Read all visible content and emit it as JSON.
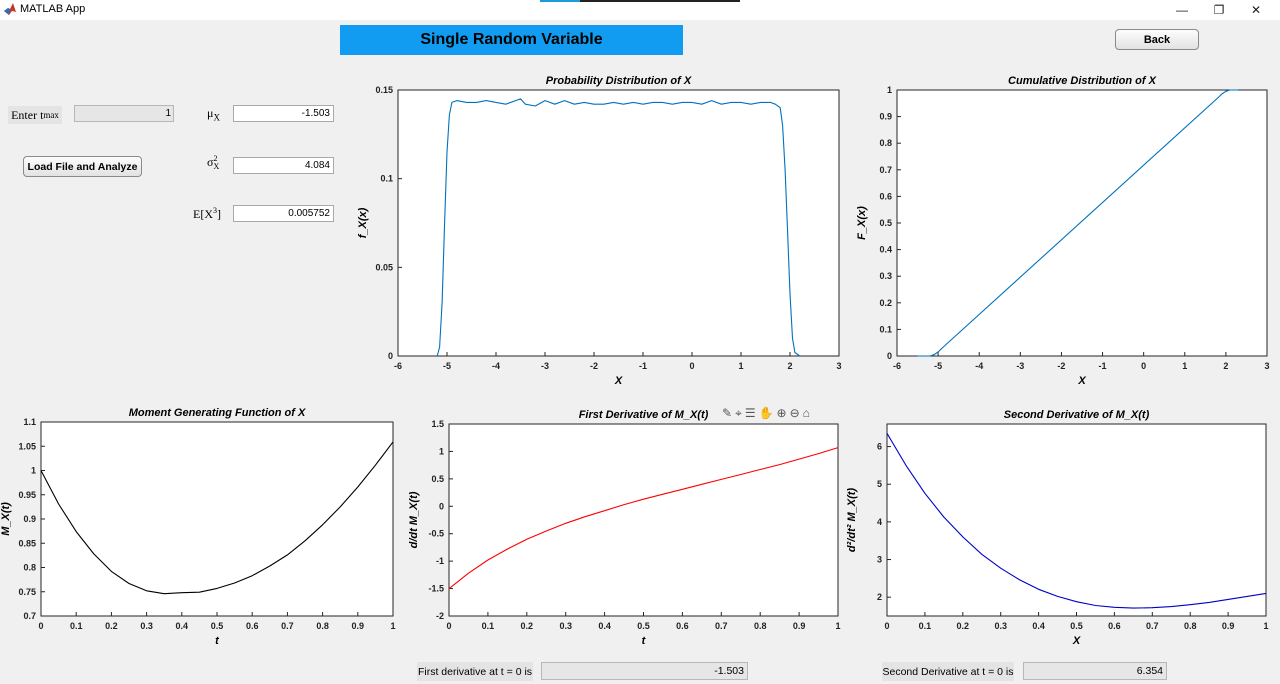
{
  "window": {
    "title": "MATLAB App",
    "minimize_icon": "—",
    "maximize_icon": "❐",
    "close_icon": "✕"
  },
  "header": {
    "title": "Single Random Variable",
    "back_label": "Back"
  },
  "inputs": {
    "tmax_label": "Enter",
    "tmax_sub": "max",
    "tmax_t": "t",
    "tmax_value": "1",
    "load_label": "Load File and Analyze"
  },
  "stats": {
    "mu_symbol": "μ",
    "mu_sub": "X",
    "mu_value": "-1.503",
    "var_symbol": "σ",
    "var_sup": "2",
    "var_sub": "X",
    "var_value": "4.084",
    "ex3_symbol": "E[X",
    "ex3_sup": "3",
    "ex3_close": "]",
    "ex3_value": "0.005752"
  },
  "bottom": {
    "first_label": "First derivative at t = 0 is",
    "first_value": "-1.503",
    "second_label": "Second Derivative at t = 0 is",
    "second_value": "6.354"
  },
  "toolbar_icons": [
    "brush-icon",
    "data-tip-icon",
    "legend-icon",
    "pan-icon",
    "zoom-in-icon",
    "zoom-out-icon",
    "home-icon"
  ],
  "chart_data": [
    {
      "id": "pdf",
      "type": "line",
      "title": "Probability Distribution of X",
      "xlabel": "X",
      "ylabel": "f_X(x)",
      "xlim": [
        -6,
        3
      ],
      "ylim": [
        0,
        0.15
      ],
      "xticks": [
        -6,
        -5,
        -4,
        -3,
        -2,
        -1,
        0,
        1,
        2,
        3
      ],
      "yticks": [
        0,
        0.05,
        0.1,
        0.15
      ],
      "ytick_labels": [
        "0",
        "0.05",
        "0.1",
        "0.15"
      ],
      "color": "#0072bd",
      "series": [
        {
          "x": [
            -5.2,
            -5.15,
            -5.1,
            -5.05,
            -5.0,
            -4.95,
            -4.9,
            -4.8,
            -4.6,
            -4.4,
            -4.2,
            -4.0,
            -3.8,
            -3.6,
            -3.5,
            -3.4,
            -3.2,
            -3.0,
            -2.8,
            -2.6,
            -2.4,
            -2.2,
            -2.0,
            -1.8,
            -1.6,
            -1.4,
            -1.2,
            -1.0,
            -0.8,
            -0.6,
            -0.4,
            -0.2,
            0.0,
            0.2,
            0.4,
            0.6,
            0.8,
            1.0,
            1.2,
            1.4,
            1.6,
            1.7,
            1.8,
            1.85,
            1.9,
            1.95,
            2.0,
            2.05,
            2.1,
            2.2
          ],
          "y": [
            0.0,
            0.005,
            0.03,
            0.075,
            0.115,
            0.136,
            0.143,
            0.144,
            0.143,
            0.143,
            0.144,
            0.143,
            0.142,
            0.144,
            0.145,
            0.142,
            0.141,
            0.144,
            0.142,
            0.144,
            0.142,
            0.143,
            0.142,
            0.142,
            0.143,
            0.142,
            0.143,
            0.142,
            0.143,
            0.143,
            0.142,
            0.143,
            0.143,
            0.142,
            0.144,
            0.142,
            0.143,
            0.143,
            0.142,
            0.143,
            0.143,
            0.142,
            0.14,
            0.13,
            0.105,
            0.07,
            0.035,
            0.01,
            0.002,
            0.0
          ]
        }
      ]
    },
    {
      "id": "cdf",
      "type": "line",
      "title": "Cumulative Distribution of X",
      "xlabel": "X",
      "ylabel": "F_X(x)",
      "xlim": [
        -6,
        3
      ],
      "ylim": [
        0,
        1
      ],
      "xticks": [
        -6,
        -5,
        -4,
        -3,
        -2,
        -1,
        0,
        1,
        2,
        3
      ],
      "yticks": [
        0,
        0.1,
        0.2,
        0.3,
        0.4,
        0.5,
        0.6,
        0.7,
        0.8,
        0.9,
        1
      ],
      "ytick_labels": [
        "0",
        "0.1",
        "0.2",
        "0.3",
        "0.4",
        "0.5",
        "0.6",
        "0.7",
        "0.8",
        "0.9",
        "1"
      ],
      "color": "#0072bd",
      "series": [
        {
          "x": [
            -5.5,
            -5.2,
            -5.1,
            -5.0,
            -4.9,
            1.8,
            1.9,
            2.0,
            2.1,
            2.3
          ],
          "y": [
            0.0,
            0.0,
            0.005,
            0.015,
            0.03,
            0.97,
            0.985,
            0.995,
            1.0,
            1.0
          ]
        }
      ]
    },
    {
      "id": "mgf",
      "type": "line",
      "title": "Moment Generating Function of X",
      "xlabel": "t",
      "ylabel": "M_X(t)",
      "xlim": [
        0,
        1
      ],
      "ylim": [
        0.7,
        1.1
      ],
      "xticks": [
        0,
        0.1,
        0.2,
        0.3,
        0.4,
        0.5,
        0.6,
        0.7,
        0.8,
        0.9,
        1
      ],
      "xtick_labels": [
        "0",
        "0.1",
        "0.2",
        "0.3",
        "0.4",
        "0.5",
        "0.6",
        "0.7",
        "0.8",
        "0.9",
        "1"
      ],
      "yticks": [
        0.7,
        0.75,
        0.8,
        0.85,
        0.9,
        0.95,
        1,
        1.05,
        1.1
      ],
      "ytick_labels": [
        "0.7",
        "0.75",
        "0.8",
        "0.85",
        "0.9",
        "0.95",
        "1",
        "1.05",
        "1.1"
      ],
      "color": "#000000",
      "series": [
        {
          "x": [
            0,
            0.05,
            0.1,
            0.15,
            0.2,
            0.25,
            0.3,
            0.35,
            0.4,
            0.45,
            0.5,
            0.55,
            0.6,
            0.65,
            0.7,
            0.75,
            0.8,
            0.85,
            0.9,
            0.95,
            1.0
          ],
          "y": [
            1.0,
            0.931,
            0.874,
            0.828,
            0.792,
            0.767,
            0.752,
            0.746,
            0.748,
            0.749,
            0.757,
            0.768,
            0.783,
            0.803,
            0.826,
            0.855,
            0.888,
            0.925,
            0.966,
            1.011,
            1.059
          ]
        }
      ]
    },
    {
      "id": "mgf1",
      "type": "line",
      "title": "First  Derivative  of  M_X(t)",
      "xlabel": "t",
      "ylabel": "d/dt  M_X(t)",
      "xlim": [
        0,
        1
      ],
      "ylim": [
        -2,
        1.5
      ],
      "xticks": [
        0,
        0.1,
        0.2,
        0.3,
        0.4,
        0.5,
        0.6,
        0.7,
        0.8,
        0.9,
        1
      ],
      "xtick_labels": [
        "0",
        "0.1",
        "0.2",
        "0.3",
        "0.4",
        "0.5",
        "0.6",
        "0.7",
        "0.8",
        "0.9",
        "1"
      ],
      "yticks": [
        -2,
        -1.5,
        -1,
        -0.5,
        0,
        0.5,
        1,
        1.5
      ],
      "ytick_labels": [
        "-2",
        "-1.5",
        "-1",
        "-0.5",
        "0",
        "0.5",
        "1",
        "1.5"
      ],
      "color": "#ff0000",
      "series": [
        {
          "x": [
            0,
            0.05,
            0.1,
            0.15,
            0.2,
            0.25,
            0.3,
            0.35,
            0.4,
            0.45,
            0.5,
            0.55,
            0.6,
            0.65,
            0.7,
            0.75,
            0.8,
            0.85,
            0.9,
            0.95,
            1.0
          ],
          "y": [
            -1.503,
            -1.22,
            -0.98,
            -0.78,
            -0.6,
            -0.45,
            -0.31,
            -0.19,
            -0.08,
            0.03,
            0.13,
            0.22,
            0.31,
            0.4,
            0.49,
            0.58,
            0.67,
            0.76,
            0.86,
            0.96,
            1.07
          ]
        }
      ]
    },
    {
      "id": "mgf2",
      "type": "line",
      "title": "Second  Derivative  of  M_X(t)",
      "xlabel": "X",
      "ylabel": "d²/dt²  M_X(t)",
      "xlim": [
        0,
        1
      ],
      "ylim": [
        1.5,
        6.6
      ],
      "xticks": [
        0,
        0.1,
        0.2,
        0.3,
        0.4,
        0.5,
        0.6,
        0.7,
        0.8,
        0.9,
        1
      ],
      "xtick_labels": [
        "0",
        "0.1",
        "0.2",
        "0.3",
        "0.4",
        "0.5",
        "0.6",
        "0.7",
        "0.8",
        "0.9",
        "1"
      ],
      "yticks": [
        2,
        3,
        4,
        5,
        6
      ],
      "ytick_labels": [
        "2",
        "3",
        "4",
        "5",
        "6"
      ],
      "color": "#0000c8",
      "series": [
        {
          "x": [
            0,
            0.05,
            0.1,
            0.15,
            0.2,
            0.25,
            0.3,
            0.35,
            0.4,
            0.45,
            0.5,
            0.55,
            0.6,
            0.65,
            0.7,
            0.75,
            0.8,
            0.85,
            0.9,
            0.95,
            1.0
          ],
          "y": [
            6.354,
            5.5,
            4.76,
            4.13,
            3.6,
            3.14,
            2.77,
            2.46,
            2.21,
            2.02,
            1.88,
            1.78,
            1.73,
            1.71,
            1.72,
            1.75,
            1.8,
            1.86,
            1.94,
            2.02,
            2.1
          ]
        }
      ]
    }
  ]
}
